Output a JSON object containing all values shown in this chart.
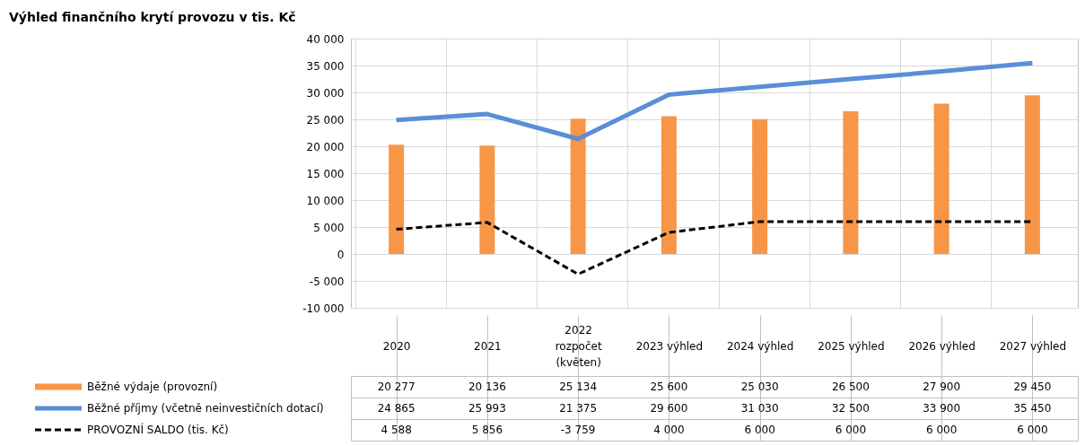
{
  "chart_data": {
    "type": "bar",
    "title": "Výhled finančního krytí provozu v tis. Kč",
    "categories": [
      "2020",
      "2021",
      "2022 rozpočet (květen)",
      "2023 výhled",
      "2024 výhled",
      "2025 výhled",
      "2026 výhled",
      "2027 výhled"
    ],
    "series": [
      {
        "name": "Běžné výdaje (provozní)",
        "color": "#f79646",
        "values": [
          20277,
          20136,
          25134,
          25600,
          25030,
          26500,
          27900,
          29450
        ]
      },
      {
        "name": "Běžné příjmy (včetně neinvestičních dotací)",
        "type": "line",
        "color": "#5b8ed6",
        "values": [
          24865,
          25993,
          21375,
          29600,
          31030,
          32500,
          33900,
          35450
        ]
      },
      {
        "name": "PROVOZNÍ SALDO (tis. Kč)",
        "type": "line",
        "line_style": "dashed",
        "color": "#000000",
        "values": [
          4588,
          5856,
          -3759,
          4000,
          6000,
          6000,
          6000,
          6000
        ]
      }
    ],
    "ylim": [
      -10000,
      40000
    ],
    "yticks": [
      {
        "value": -10000,
        "label": "-10 000"
      },
      {
        "value": -5000,
        "label": "-5 000"
      },
      0,
      {
        "value": 5000,
        "label": "5 000"
      },
      {
        "value": 10000,
        "label": "10 000"
      },
      {
        "value": 15000,
        "label": "15 000"
      },
      {
        "value": 20000,
        "label": "20 000"
      },
      {
        "value": 25000,
        "label": "25 000"
      },
      {
        "value": 30000,
        "label": "30 000"
      },
      {
        "value": 35000,
        "label": "35 000"
      },
      {
        "value": 40000,
        "label": "40 000"
      }
    ],
    "grid": true,
    "legend": "bottom left",
    "data_labels": true
  }
}
